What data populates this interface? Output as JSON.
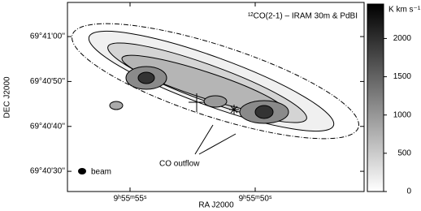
{
  "chart_data": {
    "type": "contour-map",
    "title": "¹²CO(2-1) – IRAM 30m & PdBI",
    "x_label": "RA J2000",
    "y_label": "DEC J2000",
    "xlim": [
      57.5,
      45.65
    ],
    "xticks": [
      {
        "value": 55,
        "label": "9ʰ55ᵐ55ˢ"
      },
      {
        "value": 50,
        "label": "9ʰ55ᵐ50ˢ"
      }
    ],
    "ylim": [
      25.5,
      67.6
    ],
    "yticks": [
      {
        "value": 60,
        "label": "69°41'00''"
      },
      {
        "value": 50,
        "label": "69°40'50''"
      },
      {
        "value": 40,
        "label": "69°40'40''"
      },
      {
        "value": 30,
        "label": "69°40'30''"
      }
    ],
    "colorbar_label": "K km s⁻¹",
    "colorbar_lim": [
      0,
      2450
    ],
    "colorbar_ticks": [
      0,
      500,
      1000,
      1500,
      2000
    ],
    "annotations": [
      "beam",
      "CO outflow"
    ]
  }
}
